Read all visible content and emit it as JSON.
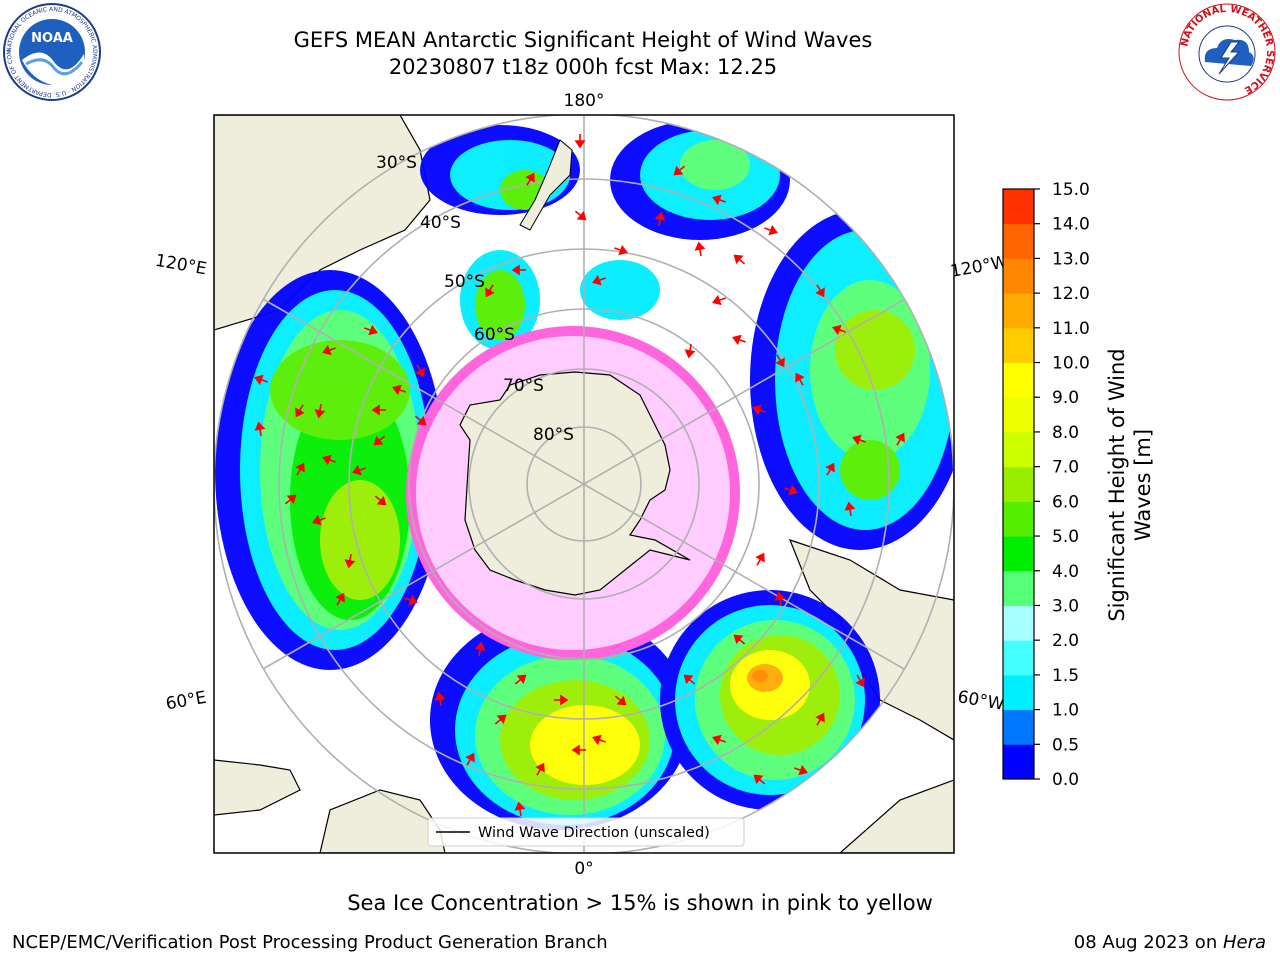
{
  "header": {
    "title_line1": "GEFS MEAN Antarctic Significant Height of Wind Waves",
    "title_line2": "20230807 t18z 000h fcst   Max: 12.25"
  },
  "logos": {
    "noaa_text": "NOAA",
    "noaa_ring": "NATIONAL OCEANIC AND ATMOSPHERIC ADMINISTRATION · U.S. DEPARTMENT OF COMMERCE",
    "nws_ring": "NATIONAL WEATHER SERVICE"
  },
  "map": {
    "longitude_labels": [
      "180°",
      "120°E",
      "120°W",
      "60°E",
      "60°W",
      "0°"
    ],
    "latitude_labels": [
      "30°S",
      "40°S",
      "50°S",
      "60°S",
      "70°S",
      "80°S"
    ],
    "legend_label": "Wind Wave Direction (unscaled)",
    "colors": {
      "land": "#efeedc",
      "grid": "#b0b0b0",
      "arrow": "#ff0000",
      "sea_ice": "#ff66dd"
    }
  },
  "colorbar": {
    "label_line1": "Significant Height of Wind",
    "label_line2": "Waves [m]",
    "ticks": [
      "0.0",
      "0.5",
      "1.0",
      "1.5",
      "2.0",
      "3.0",
      "4.0",
      "5.0",
      "6.0",
      "7.0",
      "8.0",
      "9.0",
      "10.0",
      "11.0",
      "12.0",
      "13.0",
      "14.0",
      "15.0"
    ],
    "colors": [
      "#0000ff",
      "#0077ff",
      "#00eeff",
      "#44ffff",
      "#aaffff",
      "#55ff77",
      "#00ee00",
      "#55ee00",
      "#99ee00",
      "#ccff00",
      "#eeff00",
      "#ffff00",
      "#ffcc00",
      "#ffaa00",
      "#ff8800",
      "#ff6600",
      "#ff3300",
      "#ff0000"
    ]
  },
  "caption": "Sea Ice Concentration > 15% is shown in pink to yellow",
  "footer": {
    "left": "NCEP/EMC/Verification Post Processing Product Generation Branch",
    "right_date": "08 Aug 2023 on ",
    "right_machine": "Hera"
  }
}
